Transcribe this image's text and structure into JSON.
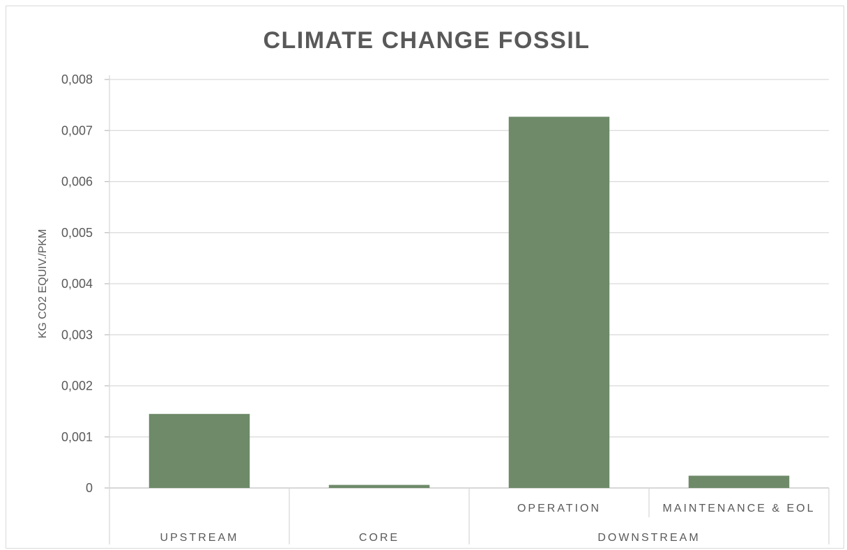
{
  "chart_data": {
    "type": "bar",
    "title": "CLIMATE CHANGE FOSSIL",
    "ylabel": "KG CO2 EQUIV./PKM",
    "xlabel": "",
    "ylim": [
      0,
      0.008
    ],
    "yticks": [
      "0",
      "0,001",
      "0,002",
      "0,003",
      "0,004",
      "0,005",
      "0,006",
      "0,007",
      "0,008"
    ],
    "grid": true,
    "categories": [
      {
        "label": "",
        "group": "UPSTREAM"
      },
      {
        "label": "",
        "group": "CORE"
      },
      {
        "label": "OPERATION",
        "group": "DOWNSTREAM"
      },
      {
        "label": "MAINTENANCE & EOL",
        "group": "DOWNSTREAM"
      }
    ],
    "groups": [
      "UPSTREAM",
      "CORE",
      "DOWNSTREAM"
    ],
    "values": [
      0.00145,
      6e-05,
      0.00727,
      0.00024
    ],
    "color": "#6e8a69"
  }
}
